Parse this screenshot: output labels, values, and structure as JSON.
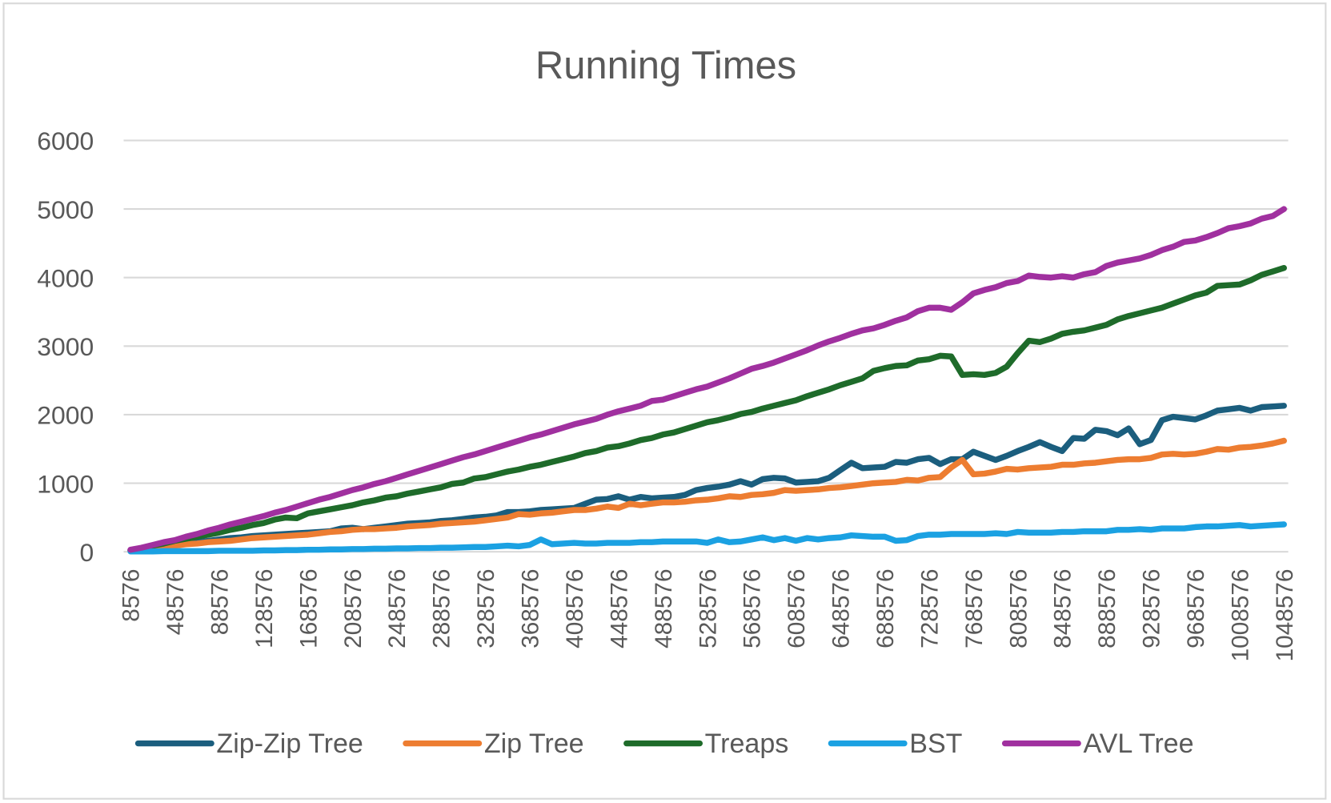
{
  "chart_data": {
    "type": "line",
    "title": "Running Times",
    "categories": [
      "8576",
      null,
      null,
      null,
      "48576",
      null,
      null,
      null,
      "88576",
      null,
      null,
      null,
      "128576",
      null,
      null,
      null,
      "168576",
      null,
      null,
      null,
      "208576",
      null,
      null,
      null,
      "248576",
      null,
      null,
      null,
      "288576",
      null,
      null,
      null,
      "328576",
      null,
      null,
      null,
      "368576",
      null,
      null,
      null,
      "408576",
      null,
      null,
      null,
      "448576",
      null,
      null,
      null,
      "488576",
      null,
      null,
      null,
      "528576",
      null,
      null,
      null,
      "568576",
      null,
      null,
      null,
      "608576",
      null,
      null,
      null,
      "648576",
      null,
      null,
      null,
      "688576",
      null,
      null,
      null,
      "728576",
      null,
      null,
      null,
      "768576",
      null,
      null,
      null,
      "808576",
      null,
      null,
      null,
      "848576",
      null,
      null,
      null,
      "888576",
      null,
      null,
      null,
      "928576",
      null,
      null,
      null,
      "968576",
      null,
      null,
      null,
      "1008576",
      null,
      null,
      null,
      "1048576"
    ],
    "series": [
      {
        "name": "Zip-Zip Tree",
        "color": "#1b5e7e",
        "values": [
          20,
          40,
          60,
          80,
          100,
          120,
          140,
          160,
          180,
          200,
          210,
          230,
          240,
          250,
          260,
          270,
          280,
          290,
          300,
          340,
          350,
          330,
          350,
          370,
          390,
          410,
          420,
          430,
          450,
          460,
          480,
          500,
          510,
          530,
          580,
          580,
          590,
          610,
          620,
          630,
          640,
          700,
          760,
          770,
          810,
          760,
          800,
          780,
          790,
          800,
          830,
          900,
          930,
          950,
          980,
          1030,
          980,
          1060,
          1080,
          1070,
          1010,
          1020,
          1030,
          1080,
          1190,
          1300,
          1220,
          1230,
          1240,
          1310,
          1300,
          1350,
          1370,
          1280,
          1350,
          1350,
          1460,
          1400,
          1340,
          1400,
          1470,
          1530,
          1600,
          1530,
          1470,
          1660,
          1650,
          1780,
          1760,
          1700,
          1800,
          1570,
          1630,
          1920,
          1970,
          1950,
          1930,
          1990,
          2060,
          2080,
          2100,
          2060,
          2110,
          2120,
          2130
        ]
      },
      {
        "name": "Zip Tree",
        "color": "#ed7d31",
        "values": [
          20,
          30,
          50,
          70,
          90,
          110,
          120,
          140,
          150,
          160,
          180,
          200,
          210,
          220,
          230,
          240,
          250,
          270,
          290,
          300,
          320,
          330,
          330,
          340,
          350,
          370,
          380,
          390,
          410,
          420,
          430,
          440,
          460,
          480,
          500,
          550,
          540,
          560,
          570,
          590,
          610,
          610,
          630,
          660,
          640,
          700,
          680,
          700,
          720,
          720,
          730,
          750,
          760,
          780,
          810,
          800,
          830,
          840,
          860,
          900,
          890,
          900,
          910,
          930,
          940,
          960,
          980,
          1000,
          1010,
          1020,
          1050,
          1040,
          1080,
          1090,
          1230,
          1340,
          1130,
          1140,
          1170,
          1210,
          1200,
          1220,
          1230,
          1240,
          1270,
          1270,
          1290,
          1300,
          1320,
          1340,
          1350,
          1350,
          1370,
          1420,
          1430,
          1420,
          1430,
          1460,
          1500,
          1490,
          1520,
          1530,
          1550,
          1580,
          1620
        ]
      },
      {
        "name": "Treaps",
        "color": "#1e6b2a",
        "values": [
          20,
          50,
          90,
          120,
          160,
          190,
          220,
          250,
          280,
          320,
          350,
          390,
          420,
          470,
          500,
          490,
          560,
          590,
          620,
          650,
          680,
          720,
          750,
          790,
          810,
          850,
          880,
          910,
          940,
          990,
          1010,
          1070,
          1090,
          1130,
          1170,
          1200,
          1240,
          1270,
          1310,
          1350,
          1390,
          1440,
          1470,
          1520,
          1540,
          1580,
          1630,
          1660,
          1710,
          1740,
          1790,
          1840,
          1890,
          1920,
          1960,
          2010,
          2040,
          2090,
          2130,
          2170,
          2210,
          2270,
          2320,
          2370,
          2430,
          2480,
          2530,
          2640,
          2680,
          2710,
          2720,
          2790,
          2810,
          2860,
          2850,
          2580,
          2590,
          2580,
          2610,
          2700,
          2900,
          3080,
          3060,
          3110,
          3180,
          3210,
          3230,
          3270,
          3310,
          3390,
          3440,
          3480,
          3520,
          3560,
          3620,
          3680,
          3740,
          3780,
          3880,
          3890,
          3900,
          3960,
          4040,
          4090,
          4140
        ]
      },
      {
        "name": "BST",
        "color": "#1ba1e2",
        "values": [
          5,
          5,
          5,
          10,
          10,
          10,
          10,
          10,
          15,
          15,
          15,
          15,
          20,
          20,
          25,
          25,
          30,
          30,
          35,
          35,
          40,
          40,
          45,
          45,
          50,
          50,
          55,
          55,
          60,
          60,
          65,
          70,
          70,
          80,
          90,
          80,
          100,
          180,
          110,
          120,
          130,
          120,
          120,
          130,
          130,
          130,
          140,
          140,
          150,
          150,
          150,
          150,
          130,
          180,
          140,
          150,
          180,
          210,
          170,
          200,
          160,
          200,
          180,
          200,
          210,
          240,
          230,
          220,
          220,
          160,
          170,
          230,
          250,
          250,
          260,
          260,
          260,
          260,
          270,
          260,
          290,
          280,
          280,
          280,
          290,
          290,
          300,
          300,
          300,
          320,
          320,
          330,
          320,
          340,
          340,
          340,
          360,
          370,
          370,
          380,
          390,
          370,
          380,
          390,
          400
        ]
      },
      {
        "name": "AVL Tree",
        "color": "#a0309f",
        "values": [
          30,
          60,
          100,
          140,
          170,
          220,
          260,
          310,
          350,
          400,
          440,
          480,
          520,
          570,
          610,
          660,
          710,
          760,
          800,
          850,
          900,
          940,
          990,
          1030,
          1080,
          1130,
          1180,
          1230,
          1280,
          1330,
          1380,
          1420,
          1470,
          1520,
          1570,
          1620,
          1670,
          1710,
          1760,
          1810,
          1860,
          1900,
          1940,
          2000,
          2050,
          2090,
          2130,
          2200,
          2220,
          2270,
          2320,
          2370,
          2410,
          2470,
          2530,
          2600,
          2670,
          2710,
          2760,
          2820,
          2880,
          2940,
          3010,
          3070,
          3120,
          3180,
          3230,
          3260,
          3310,
          3370,
          3420,
          3510,
          3560,
          3560,
          3530,
          3640,
          3770,
          3820,
          3860,
          3920,
          3950,
          4030,
          4010,
          4000,
          4020,
          4000,
          4050,
          4080,
          4170,
          4220,
          4250,
          4280,
          4330,
          4400,
          4450,
          4520,
          4540,
          4590,
          4650,
          4720,
          4750,
          4790,
          4860,
          4900,
          5000
        ]
      }
    ],
    "ylim": [
      0,
      6000
    ],
    "yticks": [
      0,
      1000,
      2000,
      3000,
      4000,
      5000,
      6000
    ],
    "grid": true,
    "legend": "bottom"
  }
}
